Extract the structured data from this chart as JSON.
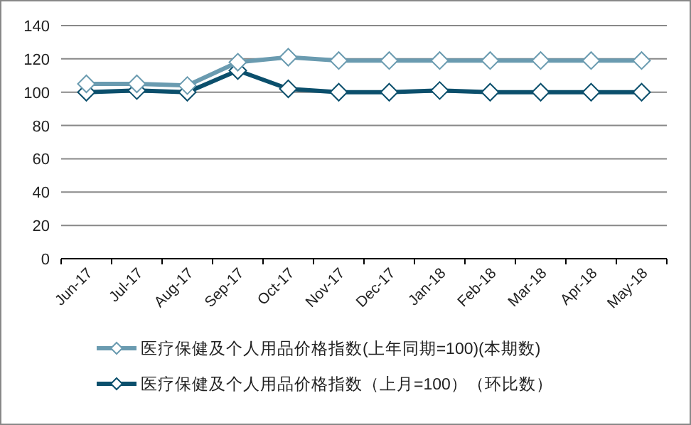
{
  "chart_data": {
    "type": "line",
    "categories": [
      "Jun-17",
      "Jul-17",
      "Aug-17",
      "Sep-17",
      "Oct-17",
      "Nov-17",
      "Dec-17",
      "Jan-18",
      "Feb-18",
      "Mar-18",
      "Apr-18",
      "May-18"
    ],
    "series": [
      {
        "name": "医疗保健及个人用品价格指数(上年同期=100)(本期数)",
        "color": "#6a9bb0",
        "values": [
          105,
          105,
          104,
          118,
          121,
          119,
          119,
          119,
          119,
          119,
          119,
          119
        ]
      },
      {
        "name": "医疗保健及个人用品价格指数（上月=100）（环比数）",
        "color": "#0b4f6c",
        "values": [
          100,
          101,
          100,
          113,
          102,
          100,
          100,
          101,
          100,
          100,
          100,
          100
        ]
      }
    ],
    "ylim": [
      0,
      140
    ],
    "yticks": [
      0,
      20,
      40,
      60,
      80,
      100,
      120,
      140
    ],
    "grid": "y",
    "legend": "bottom",
    "marker": "diamond"
  }
}
